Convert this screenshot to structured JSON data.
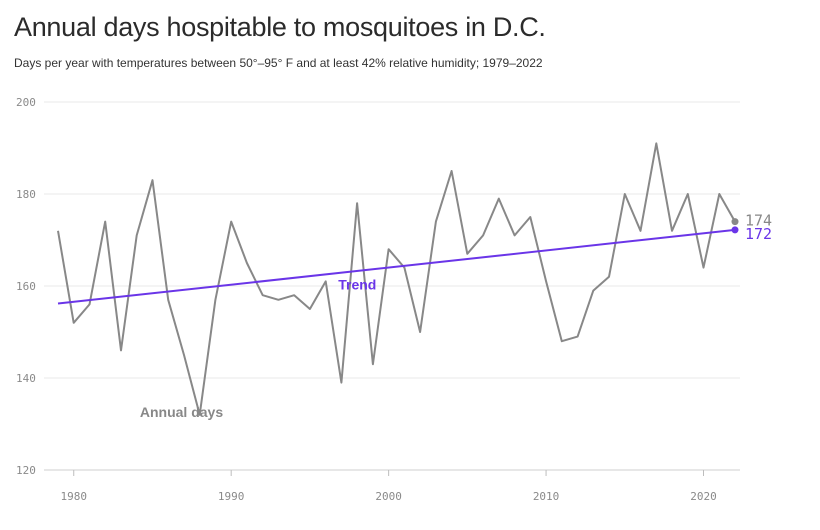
{
  "header": {
    "title": "Annual days hospitable to mosquitoes in D.C.",
    "subtitle": "Days per year with temperatures between 50°–95° F and at least 42% relative humidity; 1979–2022"
  },
  "chart_data": {
    "type": "line",
    "title": "Annual days hospitable to mosquitoes in D.C.",
    "subtitle": "Days per year with temperatures between 50°–95° F and at least 42% relative humidity; 1979–2022",
    "xlabel": "",
    "ylabel": "",
    "xlim": [
      1979,
      2022
    ],
    "ylim": [
      120,
      200
    ],
    "x_ticks": [
      1980,
      1990,
      2000,
      2010,
      2020
    ],
    "y_ticks": [
      120,
      140,
      160,
      180,
      200
    ],
    "grid": "horizontal",
    "series": [
      {
        "name": "Annual days",
        "color": "#888888",
        "x": [
          1979,
          1980,
          1981,
          1982,
          1983,
          1984,
          1985,
          1986,
          1987,
          1988,
          1989,
          1990,
          1991,
          1992,
          1993,
          1994,
          1995,
          1996,
          1997,
          1998,
          1999,
          2000,
          2001,
          2002,
          2003,
          2004,
          2005,
          2006,
          2007,
          2008,
          2009,
          2010,
          2011,
          2012,
          2013,
          2014,
          2015,
          2016,
          2017,
          2018,
          2019,
          2020,
          2021,
          2022
        ],
        "values": [
          172,
          152,
          156,
          174,
          146,
          171,
          183,
          157,
          145,
          132,
          157,
          174,
          165,
          158,
          157,
          158,
          155,
          161,
          139,
          178,
          143,
          168,
          164,
          150,
          174,
          185,
          167,
          171,
          179,
          171,
          175,
          161,
          148,
          149,
          159,
          162,
          180,
          172,
          191,
          172,
          180,
          164,
          180,
          174
        ],
        "end_label": "174"
      },
      {
        "name": "Trend",
        "color": "#6a35e8",
        "x": [
          1979,
          2022
        ],
        "values": [
          156.2,
          172.2
        ],
        "end_label": "172"
      }
    ]
  }
}
